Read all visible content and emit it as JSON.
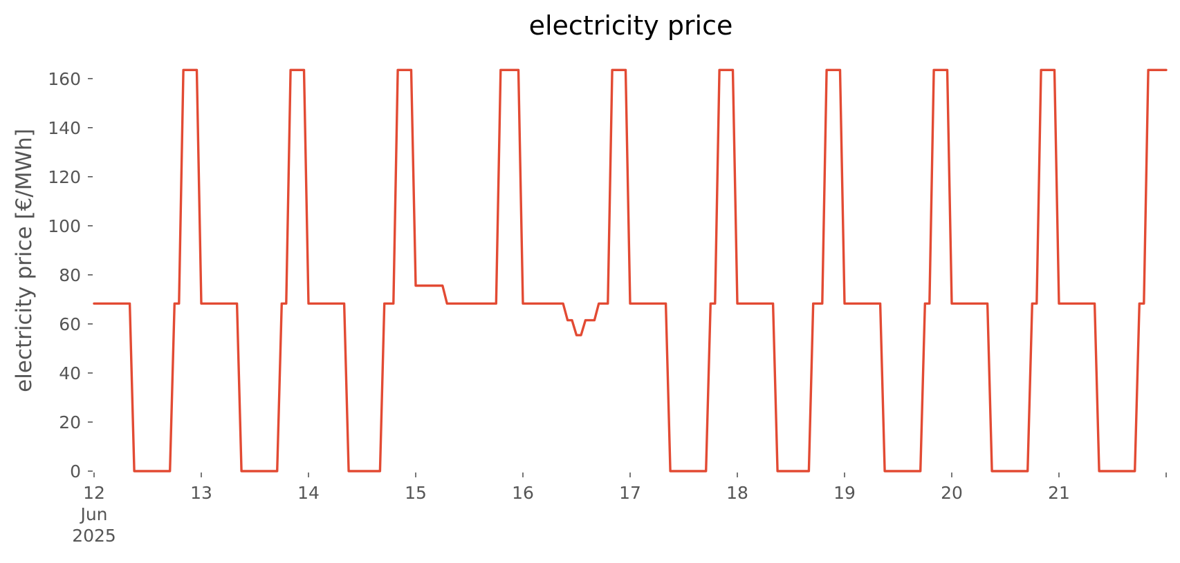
{
  "chart_data": {
    "type": "line",
    "title": "electricity price",
    "ylabel": "electricity price [€/MWh]",
    "xlabel": "",
    "x_unit": "day (June 2025)",
    "xlim": [
      12,
      22
    ],
    "ylim": [
      0,
      165
    ],
    "yticks": [
      0,
      20,
      40,
      60,
      80,
      100,
      120,
      140,
      160
    ],
    "xticks": [
      {
        "day": 12,
        "lines": [
          "12",
          "Jun",
          "2025"
        ]
      },
      {
        "day": 13,
        "lines": [
          "13"
        ]
      },
      {
        "day": 14,
        "lines": [
          "14"
        ]
      },
      {
        "day": 15,
        "lines": [
          "15"
        ]
      },
      {
        "day": 16,
        "lines": [
          "16"
        ]
      },
      {
        "day": 17,
        "lines": [
          "17"
        ]
      },
      {
        "day": 18,
        "lines": [
          "18"
        ]
      },
      {
        "day": 19,
        "lines": [
          "19"
        ]
      },
      {
        "day": 20,
        "lines": [
          "20"
        ]
      },
      {
        "day": 21,
        "lines": [
          "21"
        ]
      },
      {
        "day": 22,
        "lines": [
          ""
        ]
      }
    ],
    "grid": false,
    "legend": "none",
    "color": "#E24A33",
    "series": [
      {
        "points": [
          [
            12.0,
            68.3
          ],
          [
            12.333,
            68.3
          ],
          [
            12.375,
            0
          ],
          [
            12.708,
            0
          ],
          [
            12.75,
            68.3
          ],
          [
            12.792,
            68.3
          ],
          [
            12.833,
            163.5
          ],
          [
            12.958,
            163.5
          ],
          [
            13.0,
            68.3
          ],
          [
            13.333,
            68.3
          ],
          [
            13.375,
            0
          ],
          [
            13.708,
            0
          ],
          [
            13.75,
            68.3
          ],
          [
            13.792,
            68.3
          ],
          [
            13.833,
            163.5
          ],
          [
            13.958,
            163.5
          ],
          [
            14.0,
            68.3
          ],
          [
            14.333,
            68.3
          ],
          [
            14.375,
            0
          ],
          [
            14.667,
            0
          ],
          [
            14.708,
            68.3
          ],
          [
            14.792,
            68.3
          ],
          [
            14.833,
            163.5
          ],
          [
            14.958,
            163.5
          ],
          [
            15.0,
            75.6
          ],
          [
            15.25,
            75.6
          ],
          [
            15.292,
            68.3
          ],
          [
            15.75,
            68.3
          ],
          [
            15.792,
            163.5
          ],
          [
            15.958,
            163.5
          ],
          [
            16.0,
            68.3
          ],
          [
            16.375,
            68.3
          ],
          [
            16.417,
            61.5
          ],
          [
            16.458,
            61.5
          ],
          [
            16.5,
            55.4
          ],
          [
            16.542,
            55.4
          ],
          [
            16.583,
            61.5
          ],
          [
            16.667,
            61.5
          ],
          [
            16.708,
            68.3
          ],
          [
            16.792,
            68.3
          ],
          [
            16.833,
            163.5
          ],
          [
            16.958,
            163.5
          ],
          [
            17.0,
            68.3
          ],
          [
            17.333,
            68.3
          ],
          [
            17.375,
            0
          ],
          [
            17.708,
            0
          ],
          [
            17.75,
            68.3
          ],
          [
            17.792,
            68.3
          ],
          [
            17.833,
            163.5
          ],
          [
            17.958,
            163.5
          ],
          [
            18.0,
            68.3
          ],
          [
            18.333,
            68.3
          ],
          [
            18.375,
            0
          ],
          [
            18.667,
            0
          ],
          [
            18.708,
            68.3
          ],
          [
            18.792,
            68.3
          ],
          [
            18.833,
            163.5
          ],
          [
            18.958,
            163.5
          ],
          [
            19.0,
            68.3
          ],
          [
            19.333,
            68.3
          ],
          [
            19.375,
            0
          ],
          [
            19.708,
            0
          ],
          [
            19.75,
            68.3
          ],
          [
            19.792,
            68.3
          ],
          [
            19.833,
            163.5
          ],
          [
            19.958,
            163.5
          ],
          [
            20.0,
            68.3
          ],
          [
            20.333,
            68.3
          ],
          [
            20.375,
            0
          ],
          [
            20.708,
            0
          ],
          [
            20.75,
            68.3
          ],
          [
            20.792,
            68.3
          ],
          [
            20.833,
            163.5
          ],
          [
            20.958,
            163.5
          ],
          [
            21.0,
            68.3
          ],
          [
            21.333,
            68.3
          ],
          [
            21.375,
            0
          ],
          [
            21.708,
            0
          ],
          [
            21.75,
            68.3
          ],
          [
            21.792,
            68.3
          ],
          [
            21.833,
            163.5
          ],
          [
            22.0,
            163.5
          ]
        ]
      }
    ]
  }
}
